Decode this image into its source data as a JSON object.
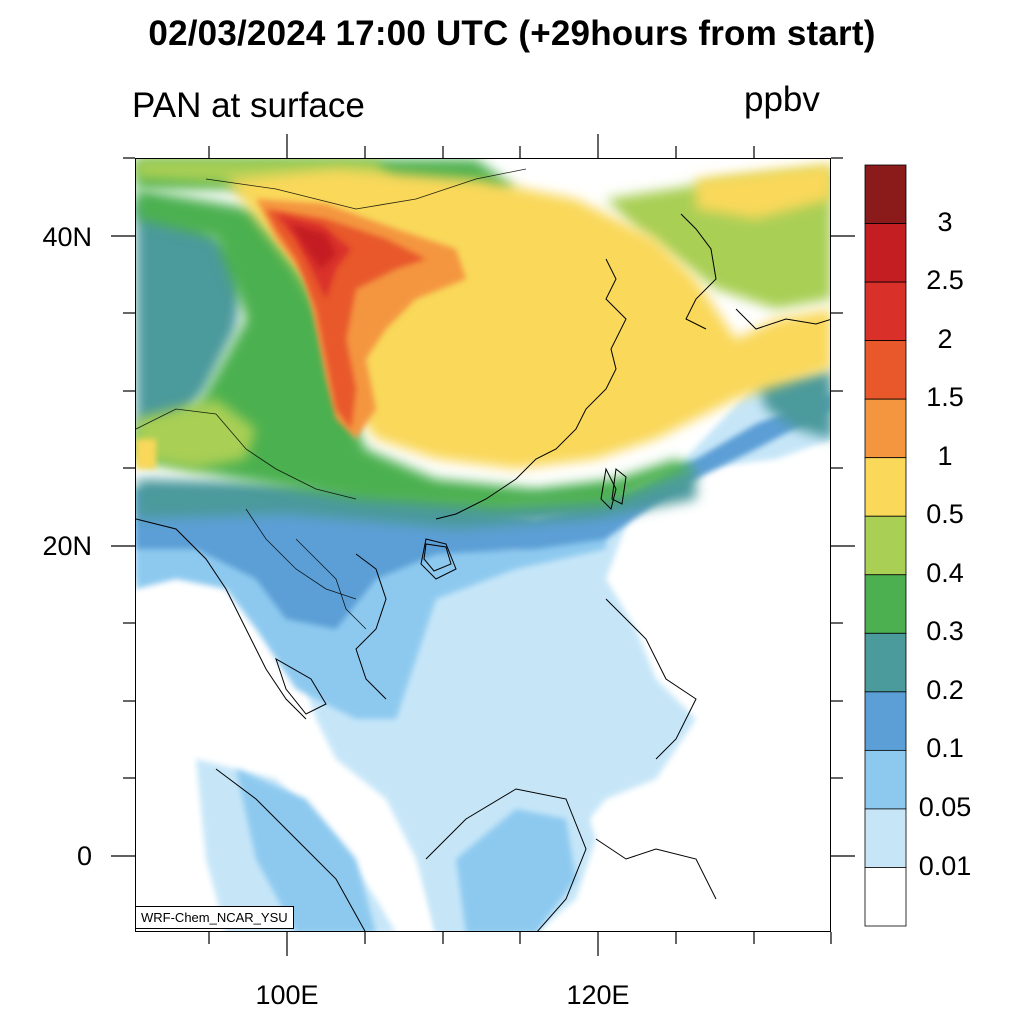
{
  "header": {
    "title": "02/03/2024 17:00 UTC (+29hours from start)",
    "field": "PAN at surface",
    "units": "ppbv"
  },
  "axes": {
    "lat_labels": [
      "40N",
      "20N",
      "0"
    ],
    "lon_labels": [
      "100E",
      "120E"
    ]
  },
  "colorbar": {
    "labels": [
      "3",
      "2.5",
      "2",
      "1.5",
      "1",
      "0.5",
      "0.4",
      "0.3",
      "0.2",
      "0.1",
      "0.05",
      "0.01"
    ],
    "colors": [
      "#8b1a1a",
      "#c41e22",
      "#d9302a",
      "#e8582b",
      "#f49640",
      "#f9d85a",
      "#a9cf54",
      "#4cb050",
      "#4b9a9c",
      "#5b9fd6",
      "#8dc9ef",
      "#c6e6f8",
      "#ffffff"
    ]
  },
  "credit": "WRF-Chem_NCAR_YSU"
}
